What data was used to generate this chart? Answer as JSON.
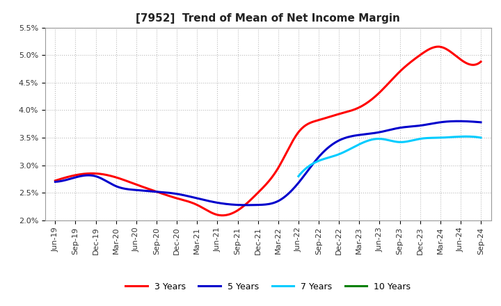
{
  "title": "[7952]  Trend of Mean of Net Income Margin",
  "ylim": [
    0.02,
    0.055
  ],
  "yticks": [
    0.02,
    0.025,
    0.03,
    0.035,
    0.04,
    0.045,
    0.05,
    0.055
  ],
  "ytick_labels": [
    "2.0%",
    "2.5%",
    "3.0%",
    "3.5%",
    "4.0%",
    "4.5%",
    "5.0%",
    "5.5%"
  ],
  "x_labels": [
    "Jun-19",
    "Sep-19",
    "Dec-19",
    "Mar-20",
    "Jun-20",
    "Sep-20",
    "Dec-20",
    "Mar-21",
    "Jun-21",
    "Sep-21",
    "Dec-21",
    "Mar-22",
    "Jun-22",
    "Sep-22",
    "Dec-22",
    "Mar-23",
    "Jun-23",
    "Sep-23",
    "Dec-23",
    "Mar-24",
    "Jun-24",
    "Sep-24"
  ],
  "series": {
    "3 Years": {
      "color": "#ff0000",
      "values": [
        0.0272,
        0.0282,
        0.0285,
        0.0278,
        0.0265,
        0.0252,
        0.024,
        0.0228,
        0.021,
        0.0218,
        0.025,
        0.0295,
        0.036,
        0.0382,
        0.0393,
        0.0405,
        0.0432,
        0.047,
        0.05,
        0.0515,
        0.0492,
        0.0488
      ]
    },
    "5 Years": {
      "color": "#0000cc",
      "values": [
        0.027,
        0.0278,
        0.028,
        0.0262,
        0.0255,
        0.0252,
        0.0248,
        0.024,
        0.0232,
        0.0228,
        0.0228,
        0.0235,
        0.0268,
        0.0315,
        0.0345,
        0.0355,
        0.036,
        0.0368,
        0.0372,
        0.0378,
        0.038,
        0.0378
      ]
    },
    "7 Years": {
      "color": "#00ccff",
      "values": [
        null,
        null,
        null,
        null,
        null,
        null,
        null,
        null,
        null,
        null,
        null,
        null,
        0.028,
        0.0308,
        0.032,
        0.0338,
        0.0348,
        0.0342,
        0.0348,
        0.035,
        0.0352,
        0.035
      ]
    },
    "10 Years": {
      "color": "#008000",
      "values": [
        null,
        null,
        null,
        null,
        null,
        null,
        null,
        null,
        null,
        null,
        null,
        null,
        null,
        null,
        null,
        null,
        null,
        null,
        null,
        null,
        null,
        null
      ]
    }
  },
  "legend_labels": [
    "3 Years",
    "5 Years",
    "7 Years",
    "10 Years"
  ],
  "legend_colors": [
    "#ff0000",
    "#0000cc",
    "#00ccff",
    "#008000"
  ],
  "background_color": "#ffffff",
  "grid_color": "#aaaaaa",
  "title_fontsize": 11,
  "tick_fontsize": 8,
  "legend_fontsize": 9
}
